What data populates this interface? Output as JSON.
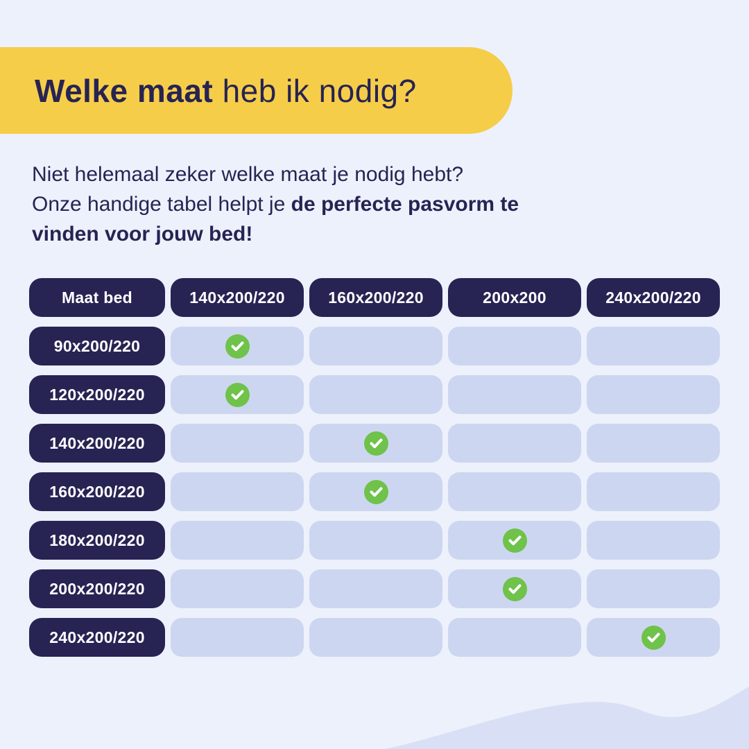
{
  "banner": {
    "title_bold": "Welke maat",
    "title_regular": "heb ik nodig?"
  },
  "intro": {
    "line1": "Niet helemaal zeker welke maat je nodig hebt?",
    "line2_regular": "Onze handige tabel helpt je",
    "line2_bold": "de perfecte pasvorm te",
    "line3_bold": "vinden voor jouw bed!"
  },
  "chart_data": {
    "type": "table",
    "title": "Welke maat heb ik nodig?",
    "columns": [
      "Maat bed",
      "140x200/220",
      "160x200/220",
      "200x200",
      "240x200/220"
    ],
    "rows": [
      {
        "label": "90x200/220",
        "checks": [
          true,
          false,
          false,
          false
        ]
      },
      {
        "label": "120x200/220",
        "checks": [
          true,
          false,
          false,
          false
        ]
      },
      {
        "label": "140x200/220",
        "checks": [
          false,
          true,
          false,
          false
        ]
      },
      {
        "label": "160x200/220",
        "checks": [
          false,
          true,
          false,
          false
        ]
      },
      {
        "label": "180x200/220",
        "checks": [
          false,
          false,
          true,
          false
        ]
      },
      {
        "label": "200x200/220",
        "checks": [
          false,
          false,
          true,
          false
        ]
      },
      {
        "label": "240x200/220",
        "checks": [
          false,
          false,
          false,
          true
        ]
      }
    ],
    "check_marker": "green-check-circle-icon",
    "legend_position": "none",
    "grid": false
  },
  "colors": {
    "background": "#EDF1FB",
    "banner_yellow": "#F5CD49",
    "navy": "#272353",
    "cell_lavender": "#CDD6F0",
    "check_green": "#6FC24A",
    "wave_lavender": "#D9E0F5",
    "text_white": "#FFFFFF"
  }
}
